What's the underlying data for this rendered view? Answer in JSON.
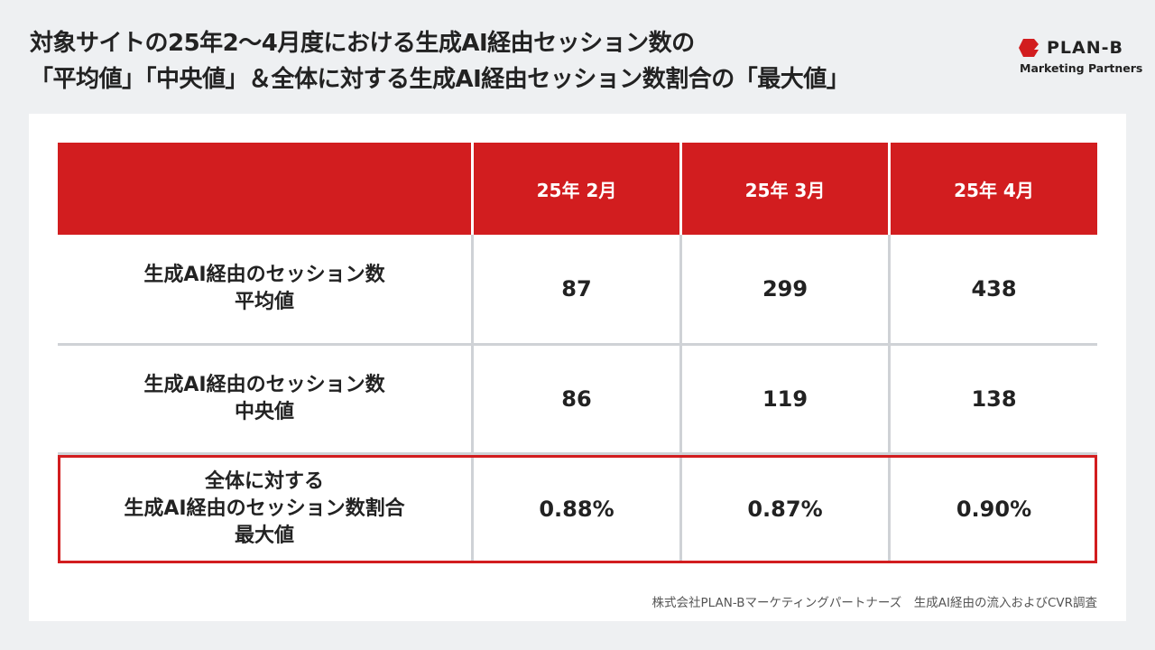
{
  "title": {
    "line1": "対象サイトの25年2〜4月度における生成AI経由セッション数の",
    "line2": "「平均値」「中央値」＆全体に対する生成AI経由セッション数割合の「最大値」"
  },
  "logo": {
    "name": "PLAN-B",
    "sub": "Marketing Partners",
    "color": "#d21d1f"
  },
  "table": {
    "columns": [
      "",
      "25年 2月",
      "25年 3月",
      "25年 4月"
    ],
    "rows": [
      {
        "label_lines": [
          "生成AI経由のセッション数",
          "平均値"
        ],
        "values": [
          "87",
          "299",
          "438"
        ]
      },
      {
        "label_lines": [
          "生成AI経由のセッション数",
          "中央値"
        ],
        "values": [
          "86",
          "119",
          "138"
        ]
      },
      {
        "label_lines": [
          "全体に対する",
          "生成AI経由のセッション数割合",
          "最大値"
        ],
        "values": [
          "0.88%",
          "0.87%",
          "0.90%"
        ],
        "highlighted": true
      }
    ],
    "header_color": "#d21d1f"
  },
  "footnote": "株式会社PLAN-Bマーケティングパートナーズ　生成AI経由の流入およびCVR調査"
}
